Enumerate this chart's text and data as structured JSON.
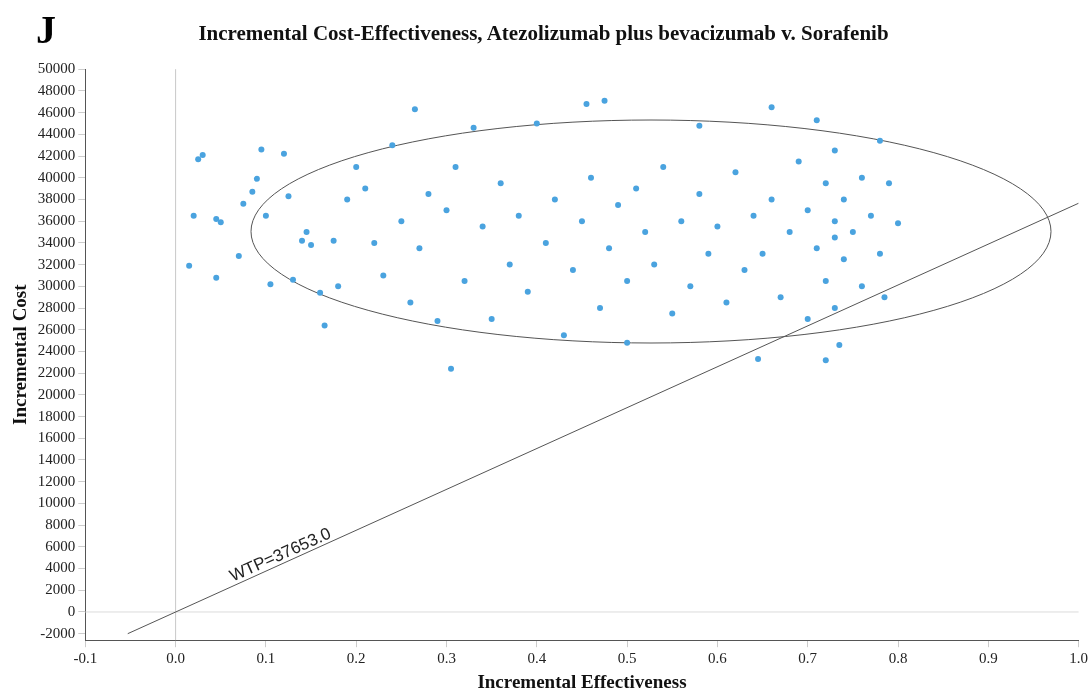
{
  "chart_data": {
    "type": "scatter",
    "title": "Incremental Cost-Effectiveness, Atezolizumab plus bevacizumab v. Sorafenib",
    "xlabel": "Incremental Effectiveness",
    "ylabel": "Incremental Cost",
    "annotations": [
      "J",
      {
        "text": "WTP=37653.0",
        "x": 0.12,
        "y": 4500
      }
    ],
    "xlim": [
      -0.1,
      1.0
    ],
    "ylim": [
      -2600,
      50000
    ],
    "xticks": [
      -0.1,
      {
        "value": 0,
        "label": "0.0"
      },
      0.1,
      0.2,
      0.3,
      0.4,
      0.5,
      0.6,
      0.7,
      0.8,
      0.9,
      {
        "value": 1,
        "label": "1.0"
      }
    ],
    "yticks": [
      -2000,
      0,
      2000,
      4000,
      6000,
      8000,
      10000,
      12000,
      14000,
      16000,
      18000,
      20000,
      22000,
      24000,
      26000,
      28000,
      30000,
      32000,
      34000,
      36000,
      38000,
      40000,
      42000,
      44000,
      46000,
      48000,
      50000
    ],
    "grid": false,
    "legend": false,
    "marker": "circle",
    "ref_lines": [
      {
        "axis": "x",
        "value": 0,
        "color": "#c8c8c8"
      },
      {
        "axis": "y",
        "value": 0,
        "color": "#dcdcdc"
      }
    ],
    "series": [
      {
        "type": "scatter",
        "color": "#4aa3df",
        "x": [
          0.015,
          0.02,
          0.025,
          0.03,
          0.045,
          0.05,
          0.045,
          0.07,
          0.075,
          0.085,
          0.09,
          0.095,
          0.1,
          0.105,
          0.12,
          0.125,
          0.13,
          0.14,
          0.145,
          0.15,
          0.16,
          0.165,
          0.175,
          0.18,
          0.19,
          0.2,
          0.21,
          0.22,
          0.23,
          0.24,
          0.25,
          0.26,
          0.265,
          0.27,
          0.28,
          0.29,
          0.3,
          0.305,
          0.31,
          0.32,
          0.33,
          0.34,
          0.35,
          0.36,
          0.37,
          0.38,
          0.39,
          0.4,
          0.41,
          0.42,
          0.43,
          0.44,
          0.45,
          0.455,
          0.46,
          0.47,
          0.475,
          0.48,
          0.49,
          0.5,
          0.5,
          0.51,
          0.52,
          0.53,
          0.54,
          0.55,
          0.56,
          0.57,
          0.58,
          0.58,
          0.59,
          0.6,
          0.61,
          0.62,
          0.63,
          0.64,
          0.645,
          0.65,
          0.66,
          0.66,
          0.67,
          0.68,
          0.69,
          0.7,
          0.7,
          0.71,
          0.71,
          0.72,
          0.72,
          0.72,
          0.73,
          0.73,
          0.73,
          0.73,
          0.735,
          0.74,
          0.74,
          0.75,
          0.76,
          0.76,
          0.77,
          0.78,
          0.78,
          0.785,
          0.79,
          0.8
        ],
        "values": [
          31900,
          36500,
          41700,
          42100,
          36200,
          35900,
          30800,
          32800,
          37600,
          38700,
          39900,
          42600,
          36500,
          30200,
          42200,
          38300,
          30600,
          34200,
          35000,
          33800,
          29400,
          26400,
          34200,
          30000,
          38000,
          41000,
          39000,
          34000,
          31000,
          43000,
          36000,
          28500,
          46300,
          33500,
          38500,
          26800,
          37000,
          22400,
          41000,
          30500,
          44600,
          35500,
          27000,
          39500,
          32000,
          36500,
          29500,
          45000,
          34000,
          38000,
          25500,
          31500,
          36000,
          46800,
          40000,
          28000,
          47100,
          33500,
          37500,
          24800,
          30500,
          39000,
          35000,
          32000,
          41000,
          27500,
          36000,
          30000,
          44800,
          38500,
          33000,
          35500,
          28500,
          40500,
          31500,
          36500,
          23300,
          33000,
          46500,
          38000,
          29000,
          35000,
          41500,
          27000,
          37000,
          45300,
          33500,
          23200,
          39500,
          30500,
          34500,
          36000,
          42500,
          28000,
          24600,
          32500,
          38000,
          35000,
          30000,
          40000,
          36500,
          43400,
          33000,
          29000,
          39500,
          35800
        ]
      },
      {
        "type": "line",
        "marker": "none",
        "color": "#555555",
        "line_style": "solid",
        "x": [
          -0.053,
          1.0
        ],
        "values": [
          -2000,
          37653
        ]
      }
    ]
  }
}
